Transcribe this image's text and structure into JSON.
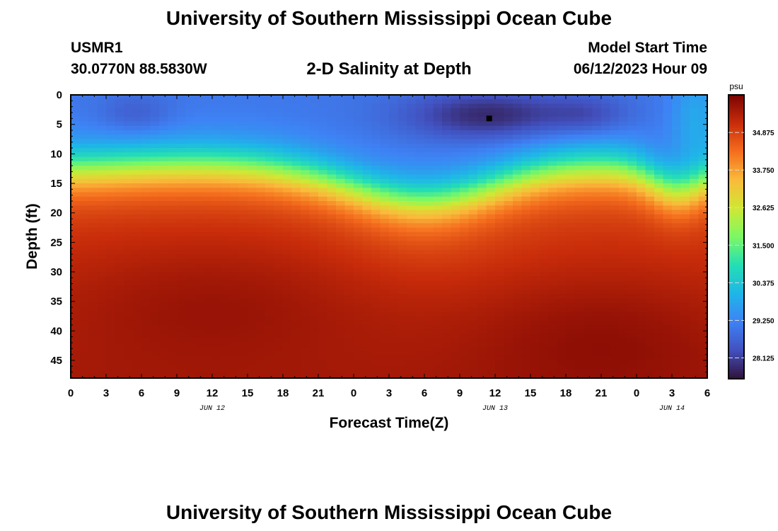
{
  "header": {
    "title": "University of Southern Mississippi Ocean Cube",
    "station_id": "USMR1",
    "station_coords": "30.0770N  88.5830W",
    "chart_title": "2-D Salinity at Depth",
    "model_label": "Model Start Time",
    "model_time": "06/12/2023 Hour 09"
  },
  "footer": {
    "title": "University of Southern Mississippi Ocean Cube"
  },
  "chart_data": {
    "type": "heatmap",
    "title": "2-D Salinity at Depth",
    "xlabel": "Forecast Time(Z)",
    "ylabel": "Depth (ft)",
    "x_hours_range": [
      0,
      54
    ],
    "x_tick_labels": [
      "0",
      "3",
      "6",
      "9",
      "12",
      "15",
      "18",
      "21",
      "0",
      "3",
      "6",
      "9",
      "12",
      "15",
      "18",
      "21",
      "0",
      "3",
      "6"
    ],
    "date_labels": [
      {
        "hour": 12,
        "label": "JUN 12"
      },
      {
        "hour": 36,
        "label": "JUN 13"
      },
      {
        "hour": 51,
        "label": "JUN 14"
      }
    ],
    "y_range": [
      0,
      48
    ],
    "y_ticks": [
      0,
      5,
      10,
      15,
      20,
      25,
      30,
      35,
      40,
      45
    ],
    "colorbar": {
      "unit": "psu",
      "range": [
        27.5,
        36.0
      ],
      "labels": [
        "34.875",
        "33.750",
        "32.625",
        "31.500",
        "30.375",
        "29.250",
        "28.125"
      ]
    },
    "surface_layer": {
      "min_psu": 27.8,
      "typical_psu": 29.0
    },
    "deep_layer": {
      "max_psu": 36.0
    },
    "halocline_depth_ft": {
      "hour_0": 13,
      "hour_11": 12,
      "hour_30": 18,
      "hour_40": 12,
      "hour_52": 16
    },
    "marker": {
      "hour": 35.5,
      "depth_ft": 4
    }
  }
}
